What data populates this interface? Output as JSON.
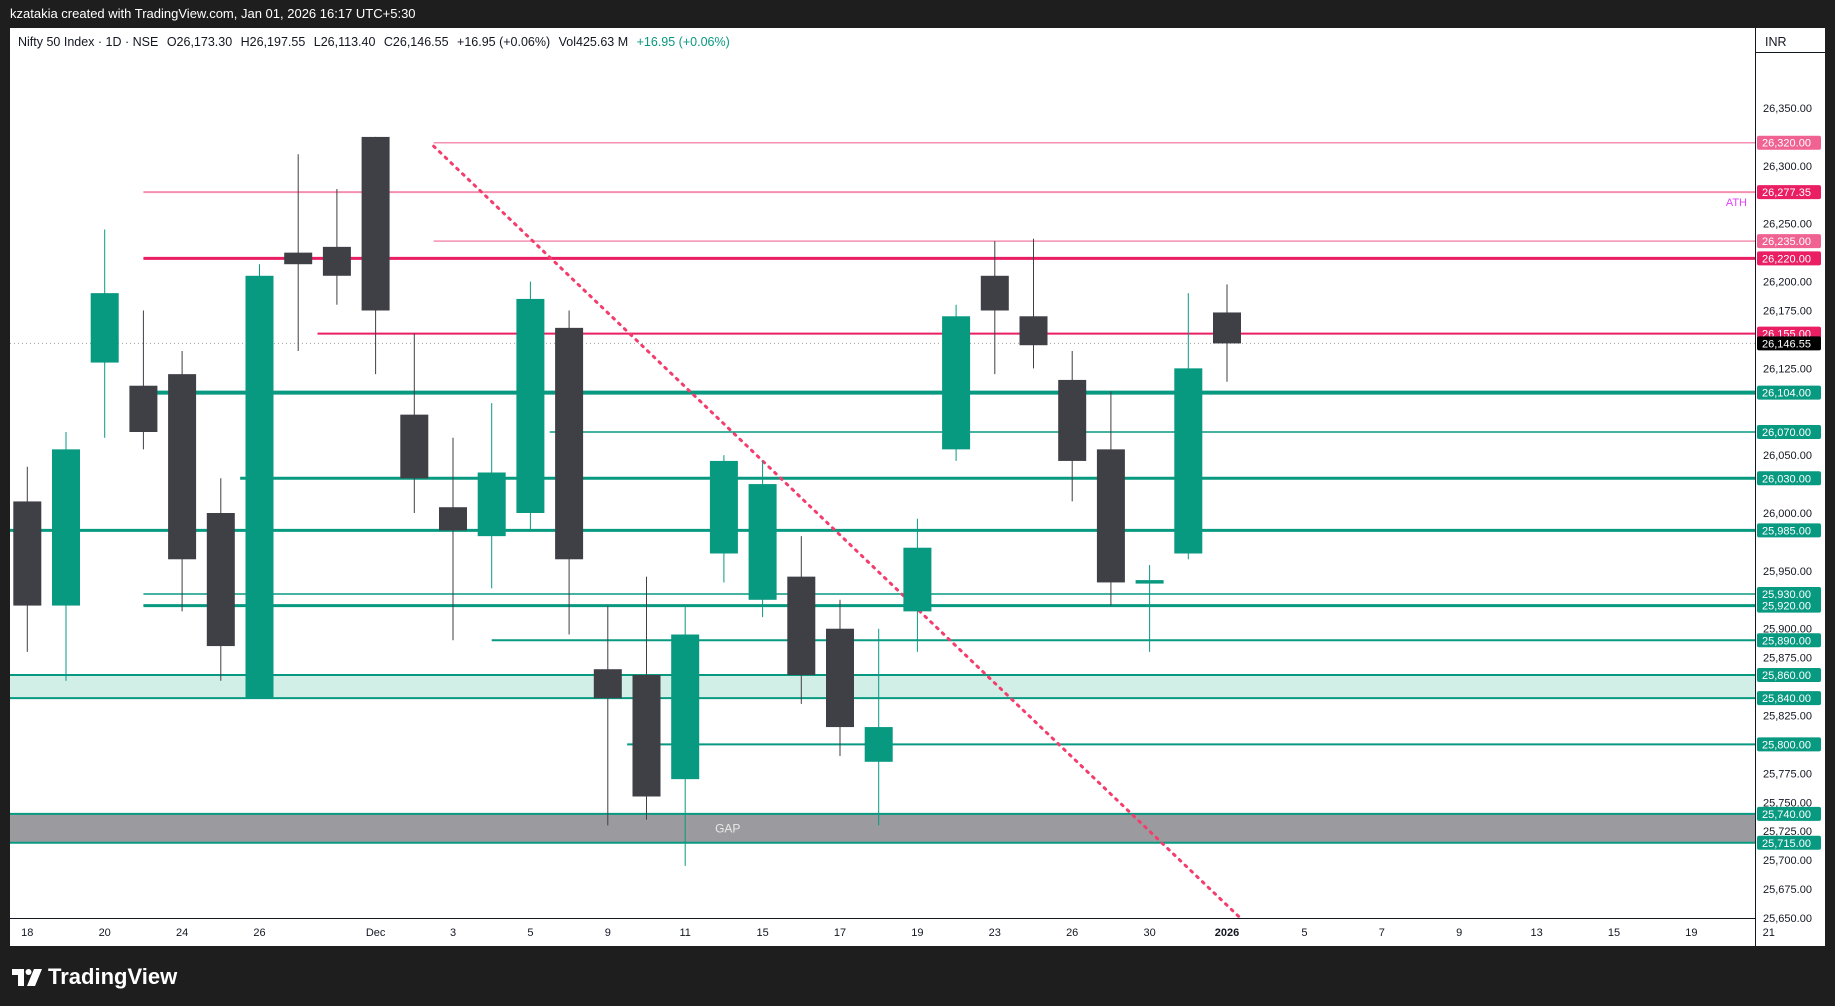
{
  "header": {
    "credit": "kzatakia created with TradingView.com, Jan 01, 2026 16:17 UTC+5:30"
  },
  "legend": {
    "symbol": "Nifty 50 Index · 1D · NSE",
    "open_label": "O",
    "open": "26,173.30",
    "high_label": "H",
    "high": "26,197.55",
    "low_label": "L",
    "low": "26,113.40",
    "close_label": "C",
    "close": "26,146.55",
    "change": "+16.95 (+0.06%)",
    "volume_label": "Vol",
    "volume": "425.63 M",
    "change2": "+16.95 (+0.06%)"
  },
  "price_axis": {
    "currency": "INR"
  },
  "brand": {
    "name": "TradingView"
  },
  "colors": {
    "up": "#089981",
    "down": "#3f3f46",
    "green_line": "#089981",
    "pink_line": "#e91e63",
    "light_pink": "#f48fb1",
    "trend": "#f23d6d",
    "gap_zone": "#9b9b9f",
    "green_zone": "#d1efe6",
    "ath_label": "#e040fb"
  },
  "chart_data": {
    "type": "candlestick",
    "symbol": "Nifty 50 Index",
    "timeframe": "1D",
    "ylim": [
      25640,
      26390
    ],
    "yticks": [
      26350,
      26300,
      26250,
      26200,
      26175,
      26125,
      26050,
      26000,
      25950,
      25925,
      25900,
      25875,
      25825,
      25775,
      25750,
      25725,
      25700,
      25675,
      25650
    ],
    "ytick_labels": [
      "26,350.00",
      "26,300.00",
      "26,250.00",
      "26,200.00",
      "26,175.00",
      "26,125.00",
      "26,050.00",
      "26,000.00",
      "25,950.00",
      "25,925.00",
      "25,900.00",
      "25,875.00",
      "25,825.00",
      "25,775.00",
      "25,750.00",
      "25,725.00",
      "25,700.00",
      "25,675.00",
      "25,650.00"
    ],
    "xticks": [
      {
        "i": -1,
        "label": "18",
        "bold": false
      },
      {
        "i": 1,
        "label": "20",
        "bold": false
      },
      {
        "i": 3,
        "label": "24",
        "bold": false
      },
      {
        "i": 5,
        "label": "26",
        "bold": false
      },
      {
        "i": 8,
        "label": "Dec",
        "bold": false
      },
      {
        "i": 10,
        "label": "3",
        "bold": false
      },
      {
        "i": 12,
        "label": "5",
        "bold": false
      },
      {
        "i": 14,
        "label": "9",
        "bold": false
      },
      {
        "i": 16,
        "label": "11",
        "bold": false
      },
      {
        "i": 18,
        "label": "15",
        "bold": false
      },
      {
        "i": 20,
        "label": "17",
        "bold": false
      },
      {
        "i": 22,
        "label": "19",
        "bold": false
      },
      {
        "i": 24,
        "label": "23",
        "bold": false
      },
      {
        "i": 26,
        "label": "26",
        "bold": false
      },
      {
        "i": 28,
        "label": "30",
        "bold": false
      },
      {
        "i": 30,
        "label": "2026",
        "bold": true
      },
      {
        "i": 32,
        "label": "5",
        "bold": false
      },
      {
        "i": 34,
        "label": "7",
        "bold": false
      },
      {
        "i": 36,
        "label": "9",
        "bold": false
      },
      {
        "i": 38,
        "label": "13",
        "bold": false
      },
      {
        "i": 40,
        "label": "15",
        "bold": false
      },
      {
        "i": 42,
        "label": "19",
        "bold": false
      },
      {
        "i": 44,
        "label": "21",
        "bold": false
      }
    ],
    "candles": [
      {
        "date": "Nov 18",
        "o": 26010,
        "h": 26040,
        "l": 25880,
        "c": 25920
      },
      {
        "date": "Nov 19",
        "o": 25920,
        "h": 26070,
        "l": 25855,
        "c": 26055
      },
      {
        "date": "Nov 20",
        "o": 26130,
        "h": 26245,
        "l": 26065,
        "c": 26190
      },
      {
        "date": "Nov 21",
        "o": 26110,
        "h": 26175,
        "l": 26055,
        "c": 26070
      },
      {
        "date": "Nov 24",
        "o": 26120,
        "h": 26140,
        "l": 25915,
        "c": 25960
      },
      {
        "date": "Nov 25",
        "o": 26000,
        "h": 26030,
        "l": 25855,
        "c": 25885
      },
      {
        "date": "Nov 26",
        "o": 25840,
        "h": 26215,
        "l": 25840,
        "c": 26205
      },
      {
        "date": "Nov 27",
        "o": 26225,
        "h": 26310,
        "l": 26140,
        "c": 26215
      },
      {
        "date": "Nov 28",
        "o": 26230,
        "h": 26280,
        "l": 26180,
        "c": 26205
      },
      {
        "date": "Dec 1",
        "o": 26325,
        "h": 26325,
        "l": 26120,
        "c": 26175
      },
      {
        "date": "Dec 2",
        "o": 26085,
        "h": 26155,
        "l": 26000,
        "c": 26030
      },
      {
        "date": "Dec 3",
        "o": 26005,
        "h": 26065,
        "l": 25890,
        "c": 25985
      },
      {
        "date": "Dec 4",
        "o": 25980,
        "h": 26095,
        "l": 25935,
        "c": 26035
      },
      {
        "date": "Dec 5",
        "o": 26000,
        "h": 26200,
        "l": 25985,
        "c": 26185
      },
      {
        "date": "Dec 8",
        "o": 26160,
        "h": 26175,
        "l": 25895,
        "c": 25960
      },
      {
        "date": "Dec 9",
        "o": 25865,
        "h": 25920,
        "l": 25730,
        "c": 25840
      },
      {
        "date": "Dec 10",
        "o": 25860,
        "h": 25945,
        "l": 25735,
        "c": 25755
      },
      {
        "date": "Dec 11",
        "o": 25770,
        "h": 25920,
        "l": 25695,
        "c": 25895
      },
      {
        "date": "Dec 12",
        "o": 25965,
        "h": 26050,
        "l": 25940,
        "c": 26045
      },
      {
        "date": "Dec 15",
        "o": 25925,
        "h": 26045,
        "l": 25910,
        "c": 26025
      },
      {
        "date": "Dec 16",
        "o": 25945,
        "h": 25980,
        "l": 25835,
        "c": 25860
      },
      {
        "date": "Dec 17",
        "o": 25900,
        "h": 25925,
        "l": 25790,
        "c": 25815
      },
      {
        "date": "Dec 18",
        "o": 25785,
        "h": 25900,
        "l": 25730,
        "c": 25815
      },
      {
        "date": "Dec 19",
        "o": 25915,
        "h": 25995,
        "l": 25880,
        "c": 25970
      },
      {
        "date": "Dec 22",
        "o": 26055,
        "h": 26180,
        "l": 26045,
        "c": 26170
      },
      {
        "date": "Dec 23",
        "o": 26205,
        "h": 26235,
        "l": 26120,
        "c": 26175
      },
      {
        "date": "Dec 24",
        "o": 26170,
        "h": 26237,
        "l": 26125,
        "c": 26145
      },
      {
        "date": "Dec 26",
        "o": 26115,
        "h": 26140,
        "l": 26010,
        "c": 26045
      },
      {
        "date": "Dec 29",
        "o": 26055,
        "h": 26105,
        "l": 25920,
        "c": 25940
      },
      {
        "date": "Dec 30",
        "o": 25939,
        "h": 25955,
        "l": 25880,
        "c": 25942
      },
      {
        "date": "Dec 31",
        "o": 25965,
        "h": 26190,
        "l": 25960,
        "c": 26125
      },
      {
        "date": "Jan 1",
        "o": 26173.3,
        "h": 26197.55,
        "l": 26113.4,
        "c": 26146.55
      }
    ],
    "levels": [
      {
        "value": 26320,
        "label": "26,320.00",
        "color": "#f48fb1",
        "width": 1.5,
        "x_start_index": 9.5,
        "tag_color": "#f06292"
      },
      {
        "value": 26277.35,
        "label": "26,277.35",
        "color": "#f48fb1",
        "width": 2,
        "x_start_index": 2,
        "tag_color": "#e91e63",
        "note": "ATH"
      },
      {
        "value": 26235,
        "label": "26,235.00",
        "color": "#f48fb1",
        "width": 1.5,
        "x_start_index": 9.5,
        "tag_color": "#f06292"
      },
      {
        "value": 26220,
        "label": "26,220.00",
        "color": "#e91e63",
        "width": 3,
        "x_start_index": 2,
        "tag_color": "#e91e63"
      },
      {
        "value": 26155,
        "label": "26,155.00",
        "color": "#e91e63",
        "width": 2,
        "x_start_index": 6.5,
        "tag_color": "#e91e63"
      },
      {
        "value": 26104,
        "label": "26,104.00",
        "color": "#089981",
        "width": 4,
        "x_start_index": 2,
        "tag_color": "#089981"
      },
      {
        "value": 26070,
        "label": "26,070.00",
        "color": "#089981",
        "width": 1.5,
        "x_start_index": 12.5,
        "tag_color": "#089981"
      },
      {
        "value": 26030,
        "label": "26,030.00",
        "color": "#089981",
        "width": 3,
        "x_start_index": 4.5,
        "tag_color": "#089981"
      },
      {
        "value": 25985,
        "label": "25,985.00",
        "color": "#089981",
        "width": 3,
        "x_start_index": -1.5,
        "tag_color": "#089981"
      },
      {
        "value": 25930,
        "label": "25,930.00",
        "color": "#089981",
        "width": 1.5,
        "x_start_index": 2,
        "tag_color": "#089981"
      },
      {
        "value": 25920,
        "label": "25,920.00",
        "color": "#089981",
        "width": 3,
        "x_start_index": 2,
        "tag_color": "#089981"
      },
      {
        "value": 25890,
        "label": "25,890.00",
        "color": "#089981",
        "width": 2,
        "x_start_index": 11,
        "tag_color": "#089981"
      },
      {
        "value": 25860,
        "label": "25,860.00",
        "color": "#089981",
        "width": 2,
        "x_start_index": -1.5,
        "tag_color": "#089981"
      },
      {
        "value": 25840,
        "label": "25,840.00",
        "color": "#089981",
        "width": 2,
        "x_start_index": -1.5,
        "tag_color": "#089981"
      },
      {
        "value": 25800,
        "label": "25,800.00",
        "color": "#089981",
        "width": 2,
        "x_start_index": 14.5,
        "tag_color": "#089981"
      },
      {
        "value": 25740,
        "label": "25,740.00",
        "color": "#089981",
        "width": 2,
        "x_start_index": -1.5,
        "tag_color": "#089981"
      },
      {
        "value": 25715,
        "label": "25,715.00",
        "color": "#089981",
        "width": 2,
        "x_start_index": -1.5,
        "tag_color": "#089981"
      }
    ],
    "zones": [
      {
        "name": "",
        "from": 25840,
        "to": 25860,
        "color": "#d1efe6"
      },
      {
        "name": "GAP",
        "from": 25715,
        "to": 25740,
        "color": "#9b9b9f"
      }
    ],
    "ath_text": "ATH",
    "last_price": {
      "value": 26146.55,
      "label": "26,146.55"
    },
    "trendline": {
      "from": {
        "i": 9.5,
        "value": 26317
      },
      "to": {
        "i": 30.5,
        "value": 25645
      }
    }
  }
}
